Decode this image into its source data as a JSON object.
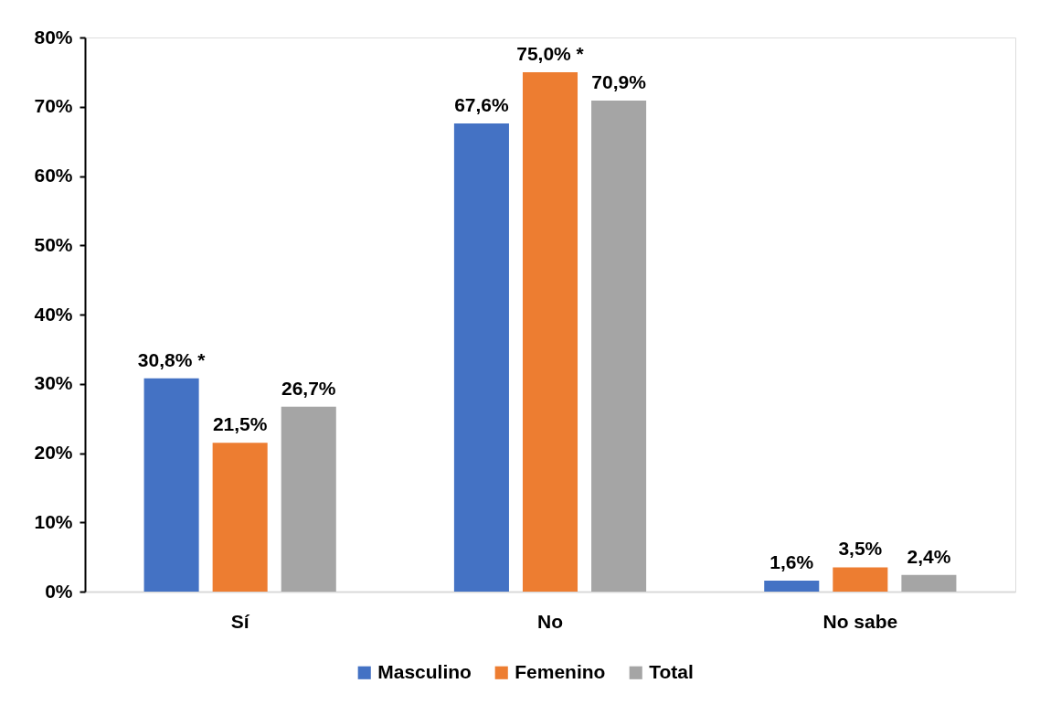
{
  "chart_data": {
    "type": "bar",
    "categories": [
      "Sí",
      "No",
      "No sabe"
    ],
    "series": [
      {
        "name": "Masculino",
        "color": "#4472c4",
        "values": [
          30.8,
          67.6,
          1.6
        ],
        "value_labels": [
          "30,8% *",
          "67,6%",
          "1,6%"
        ]
      },
      {
        "name": "Femenino",
        "color": "#ed7d31",
        "values": [
          21.5,
          75.0,
          3.5
        ],
        "value_labels": [
          "21,5%",
          "75,0% *",
          "3,5%"
        ]
      },
      {
        "name": "Total",
        "color": "#a5a5a5",
        "values": [
          26.7,
          70.9,
          2.4
        ],
        "value_labels": [
          "26,7%",
          "70,9%",
          "2,4%"
        ]
      }
    ],
    "ylim": [
      0,
      80
    ],
    "yticks": [
      {
        "value": 0,
        "label": "0%"
      },
      {
        "value": 10,
        "label": "10%"
      },
      {
        "value": 20,
        "label": "20%"
      },
      {
        "value": 30,
        "label": "30%"
      },
      {
        "value": 40,
        "label": "40%"
      },
      {
        "value": 50,
        "label": "50%"
      },
      {
        "value": 60,
        "label": "60%"
      },
      {
        "value": 70,
        "label": "70%"
      },
      {
        "value": 80,
        "label": "80%"
      }
    ],
    "legend": "bottom"
  }
}
